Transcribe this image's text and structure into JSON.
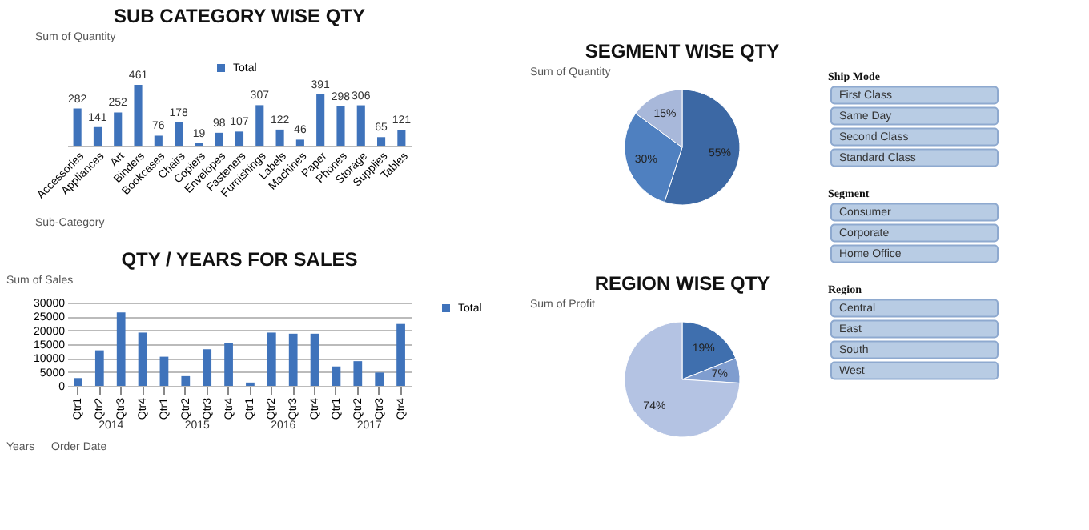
{
  "chart_data": [
    {
      "type": "bar",
      "title": "SUB CATEGORY WISE QTY",
      "categories": [
        "Accessories",
        "Appliances",
        "Art",
        "Binders",
        "Bookcases",
        "Chairs",
        "Copiers",
        "Envelopes",
        "Fasteners",
        "Furnishings",
        "Labels",
        "Machines",
        "Paper",
        "Phones",
        "Storage",
        "Supplies",
        "Tables"
      ],
      "series": [
        {
          "name": "Total",
          "color": "#3f73bb",
          "values": [
            282,
            141,
            252,
            461,
            76,
            178,
            19,
            98,
            107,
            307,
            122,
            46,
            391,
            298,
            306,
            65,
            121
          ]
        }
      ],
      "data_labels": true,
      "legend": "top",
      "tick_labels": "x",
      "grid": false,
      "annotations": [
        "Sum of Quantity",
        "Sub-Category"
      ]
    },
    {
      "type": "pie",
      "title": "SEGMENT WISE QTY",
      "categories": [
        null,
        null,
        null
      ],
      "values": [
        55,
        30,
        15
      ],
      "colors": [
        "#3c68a4",
        "#4f80c0",
        "#a8b8da"
      ],
      "value_labels": [
        "55%",
        "30%",
        "15%"
      ],
      "legend": false,
      "annotations": [
        "Sum of Quantity"
      ]
    },
    {
      "type": "other",
      "title": "Ship Mode",
      "annotations": [
        "First Class",
        "Same Day",
        "Second Class",
        "Standard Class"
      ]
    },
    {
      "type": "bar",
      "title": "QTY / YEARS FOR SALES",
      "categories": [
        "Qtr1",
        "Qtr2",
        "Qtr3",
        "Qtr4",
        "Qtr1",
        "Qtr2",
        "Qtr3",
        "Qtr4",
        "Qtr1",
        "Qtr2",
        "Qtr3",
        "Qtr4",
        "Qtr1",
        "Qtr2",
        "Qtr3",
        "Qtr4"
      ],
      "series": [
        {
          "name": "Total",
          "color": "#3f73bb",
          "values": [
            2800,
            12800,
            26500,
            19200,
            10500,
            3500,
            13200,
            15500,
            1200,
            19200,
            18800,
            18800,
            7000,
            8900,
            4800,
            22300
          ]
        }
      ],
      "ylim": [
        0,
        30000
      ],
      "yticks": [
        0,
        5000,
        10000,
        15000,
        20000,
        25000,
        30000
      ],
      "grid": "y",
      "legend": "right",
      "x2lim": [
        2013.5,
        2017.5
      ],
      "x2ticks": [
        2014,
        2015,
        2016,
        2017
      ],
      "annotations": [
        "Sum of Sales",
        "Years",
        "Order Date"
      ]
    },
    {
      "type": "pie",
      "title": "REGION WISE QTY",
      "categories": [
        null,
        null,
        null
      ],
      "values": [
        19,
        7,
        74
      ],
      "colors": [
        "#3f6fae",
        "#7f9dcf",
        "#b4c3e3"
      ],
      "value_labels": [
        "19%",
        "7%",
        "74%"
      ],
      "legend": false,
      "annotations": [
        "Sum of Profit"
      ]
    },
    {
      "type": "other",
      "title": "Segment",
      "annotations": [
        "Consumer",
        "Corporate",
        "Home Office"
      ]
    },
    {
      "type": "other",
      "title": "Region",
      "annotations": [
        "Central",
        "East",
        "South",
        "West"
      ]
    }
  ]
}
